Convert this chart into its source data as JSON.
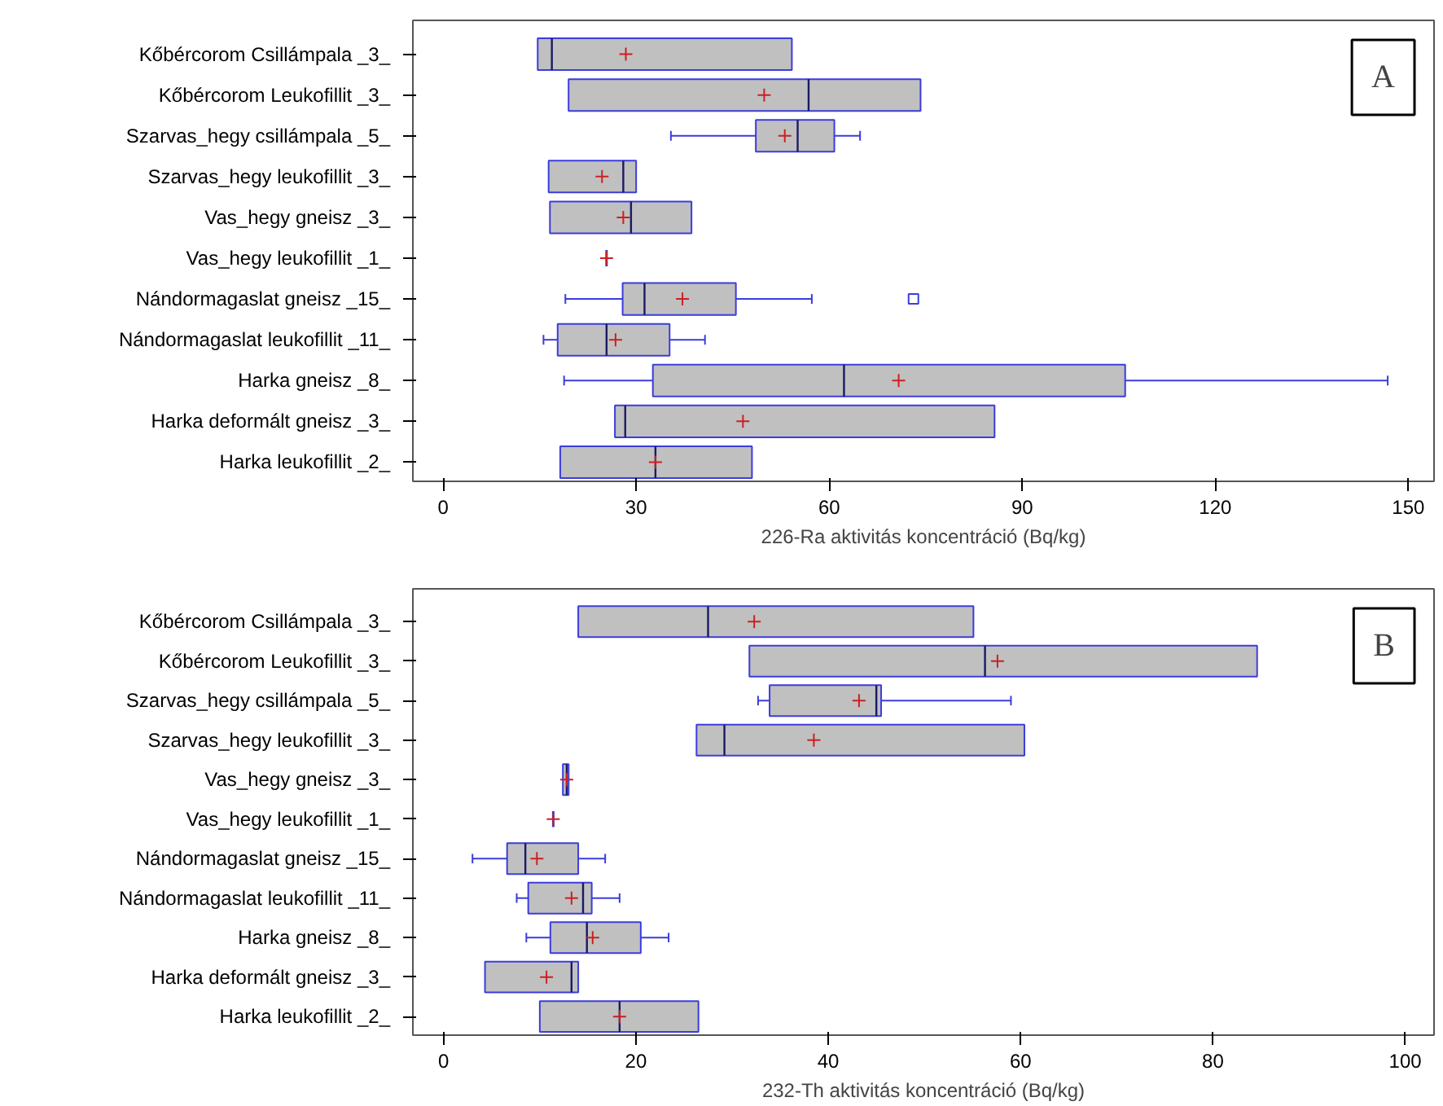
{
  "chart_data": [
    {
      "type": "box",
      "orientation": "horizontal",
      "xlabel": "226-Ra aktivitás koncentráció (Bq/kg)",
      "annotations": [
        "A"
      ],
      "grid": false,
      "categories": [
        "Kőbércorom Csillámpala _3_",
        "Kőbércorom Leukofillit _3_",
        "Szarvas_hegy csillámpala _5_",
        "Szarvas_hegy leukofillit _3_",
        "Vas_hegy gneisz _3_",
        "Vas_hegy leukofillit _1_",
        "Nándormagaslat gneisz _15_",
        "Nándormagaslat leukofillit _11_",
        "Harka gneisz _8_",
        "Harka deformált gneisz _3_",
        "Harka leukofillit _2_"
      ],
      "xlim": [
        -4.7,
        154
      ],
      "xticks": [
        0,
        30,
        60,
        90,
        120,
        150
      ],
      "series": [
        {
          "color": "#c0c0c0",
          "boxes": [
            {
              "low": 14.7,
              "q1": 14.7,
              "median": 16.9,
              "q3": 54.2,
              "high": 54.2,
              "mean": 28.4
            },
            {
              "low": 19.5,
              "q1": 19.5,
              "median": 56.8,
              "q3": 74.2,
              "high": 74.2,
              "mean": 49.9
            },
            {
              "low": 35.4,
              "q1": 48.6,
              "median": 55.1,
              "q3": 60.8,
              "high": 64.8,
              "mean": 53.1
            },
            {
              "low": 16.4,
              "q1": 16.4,
              "median": 28.0,
              "q3": 30.0,
              "high": 30.0,
              "mean": 24.7
            },
            {
              "low": 16.6,
              "q1": 16.6,
              "median": 29.2,
              "q3": 38.6,
              "high": 38.6,
              "mean": 28.0
            },
            {
              "low": 25.4,
              "q1": 25.4,
              "median": 25.4,
              "q3": 25.4,
              "high": 25.4,
              "mean": 25.4
            },
            {
              "low": 19.0,
              "q1": 27.9,
              "median": 31.3,
              "q3": 45.5,
              "high": 57.3,
              "mean": 37.2,
              "outliers": [
                73.1
              ]
            },
            {
              "low": 15.6,
              "q1": 17.8,
              "median": 25.4,
              "q3": 35.2,
              "high": 40.7,
              "mean": 26.8
            },
            {
              "low": 18.8,
              "q1": 32.6,
              "median": 62.3,
              "q3": 106.0,
              "high": 146.8,
              "mean": 70.8
            },
            {
              "low": 26.7,
              "q1": 26.7,
              "median": 28.3,
              "q3": 85.7,
              "high": 85.7,
              "mean": 46.6
            },
            {
              "low": 18.2,
              "q1": 18.2,
              "median": 33.0,
              "q3": 48.0,
              "high": 48.0,
              "mean": 33.0
            }
          ]
        }
      ]
    },
    {
      "type": "box",
      "orientation": "horizontal",
      "xlabel": "232-Th aktivitás koncentráció (Bq/kg)",
      "annotations": [
        "B"
      ],
      "grid": false,
      "categories": [
        "Kőbércorom Csillámpala _3_",
        "Kőbércorom Leukofillit _3_",
        "Szarvas_hegy csillámpala _5_",
        "Szarvas_hegy leukofillit _3_",
        "Vas_hegy gneisz _3_",
        "Vas_hegy leukofillit _1_",
        "Nándormagaslat gneisz _15_",
        "Nándormagaslat leukofillit _11_",
        "Harka gneisz _8_",
        "Harka deformált gneisz _3_",
        "Harka leukofillit _2_"
      ],
      "xlim": [
        -3.2,
        103
      ],
      "xticks": [
        0,
        20,
        40,
        60,
        80,
        100
      ],
      "series": [
        {
          "color": "#c0c0c0",
          "boxes": [
            {
              "low": 14.0,
              "q1": 14.0,
              "median": 27.5,
              "q3": 55.1,
              "high": 55.1,
              "mean": 32.3
            },
            {
              "low": 31.8,
              "q1": 31.8,
              "median": 56.3,
              "q3": 84.6,
              "high": 84.6,
              "mean": 57.6
            },
            {
              "low": 32.7,
              "q1": 33.9,
              "median": 45.0,
              "q3": 45.5,
              "high": 59.0,
              "mean": 43.2
            },
            {
              "low": 26.3,
              "q1": 26.3,
              "median": 29.2,
              "q3": 60.4,
              "high": 60.4,
              "mean": 38.5
            },
            {
              "low": 12.4,
              "q1": 12.4,
              "median": 12.8,
              "q3": 13.0,
              "high": 13.0,
              "mean": 12.8
            },
            {
              "low": 11.4,
              "q1": 11.4,
              "median": 11.4,
              "q3": 11.4,
              "high": 11.4,
              "mean": 11.4
            },
            {
              "low": 3.0,
              "q1": 6.6,
              "median": 8.5,
              "q3": 14.0,
              "high": 16.8,
              "mean": 9.7
            },
            {
              "low": 7.6,
              "q1": 8.8,
              "median": 14.5,
              "q3": 15.4,
              "high": 18.3,
              "mean": 13.3
            },
            {
              "low": 8.6,
              "q1": 11.1,
              "median": 14.9,
              "q3": 20.5,
              "high": 23.4,
              "mean": 15.5
            },
            {
              "low": 4.3,
              "q1": 4.3,
              "median": 13.3,
              "q3": 14.0,
              "high": 14.0,
              "mean": 10.7
            },
            {
              "low": 10.0,
              "q1": 10.0,
              "median": 18.3,
              "q3": 26.5,
              "high": 26.5,
              "mean": 18.3
            }
          ]
        }
      ]
    }
  ]
}
